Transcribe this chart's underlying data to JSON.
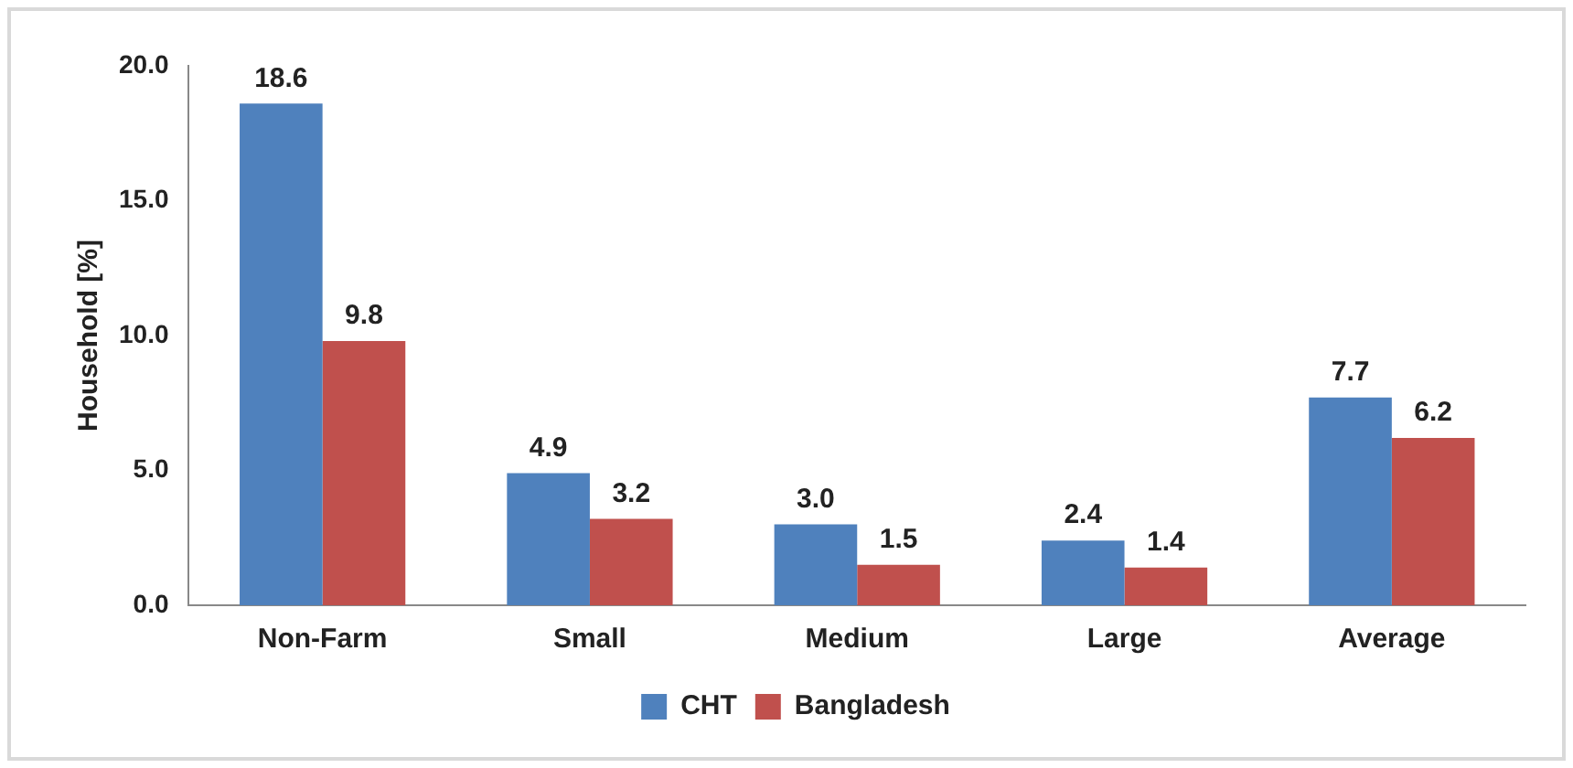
{
  "chart_data": {
    "type": "bar",
    "ylabel": "Household [%]",
    "categories": [
      "Non-Farm",
      "Small",
      "Medium",
      "Large",
      "Average"
    ],
    "series": [
      {
        "name": "CHT",
        "color": "#4f81bd",
        "values": [
          18.6,
          4.9,
          3.0,
          2.4,
          7.7
        ],
        "value_labels": [
          "18.6",
          "4.9",
          "3.0",
          "2.4",
          "7.7"
        ]
      },
      {
        "name": "Bangladesh",
        "color": "#c0504d",
        "values": [
          9.8,
          3.2,
          1.5,
          1.4,
          6.2
        ],
        "value_labels": [
          "9.8",
          "3.2",
          "1.5",
          "1.4",
          "6.2"
        ]
      }
    ],
    "ylim": [
      0,
      20
    ],
    "yticks": [
      {
        "value": 0,
        "label": "0.0"
      },
      {
        "value": 5,
        "label": "5.0"
      },
      {
        "value": 10,
        "label": "10.0"
      },
      {
        "value": 15,
        "label": "15.0"
      },
      {
        "value": 20,
        "label": "20.0"
      }
    ],
    "grid": false,
    "legend": "bottom"
  }
}
